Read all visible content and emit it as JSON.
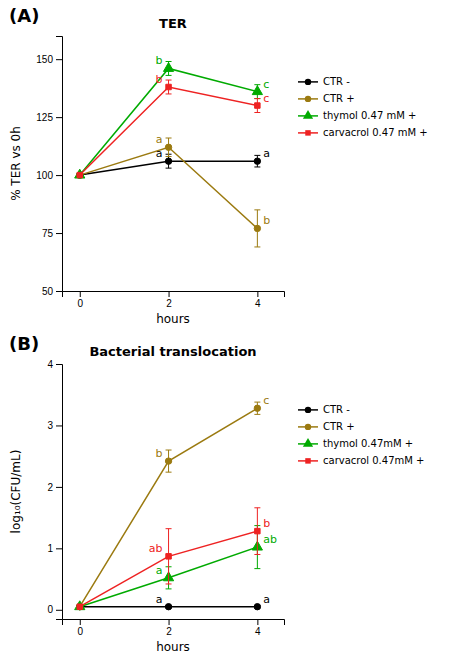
{
  "chart_data": [
    {
      "type": "line",
      "panel_label": "(A)",
      "title": "TER",
      "x_label": "hours",
      "y_label": "% TER vs 0h",
      "x": [
        0,
        2,
        4
      ],
      "xlim": [
        -0.4,
        4.6
      ],
      "xticks": [
        0,
        2,
        4
      ],
      "ylim": [
        50,
        160
      ],
      "yticks": [
        50,
        75,
        100,
        125,
        150
      ],
      "series": [
        {
          "name": "CTR -",
          "color": "#000000",
          "marker": "circle",
          "values": [
            100,
            106,
            106
          ],
          "errors": [
            0,
            3,
            2.5
          ]
        },
        {
          "name": "CTR +",
          "color": "#9b7a10",
          "marker": "circle",
          "values": [
            100,
            112,
            77
          ],
          "errors": [
            0,
            4,
            8
          ]
        },
        {
          "name": "thymol 0.47 mM +",
          "color": "#00aa00",
          "marker": "triangle",
          "values": [
            100,
            146,
            136
          ],
          "errors": [
            0,
            3,
            3
          ]
        },
        {
          "name": "carvacrol 0.47 mM +",
          "color": "#ee2222",
          "marker": "square",
          "values": [
            100,
            138,
            130
          ],
          "errors": [
            0,
            3,
            3
          ]
        }
      ],
      "annotations": [
        {
          "text": "b",
          "color": "#00aa00",
          "x": 2,
          "y": 146
        },
        {
          "text": "b",
          "color": "#ee2222",
          "x": 2,
          "y": 138
        },
        {
          "text": "a",
          "color": "#9b7a10",
          "x": 2,
          "y": 112
        },
        {
          "text": "a",
          "color": "#000000",
          "x": 2,
          "y": 106
        },
        {
          "text": "c",
          "color": "#00aa00",
          "x": 4,
          "y": 136
        },
        {
          "text": "c",
          "color": "#ee2222",
          "x": 4,
          "y": 130
        },
        {
          "text": "a",
          "color": "#000000",
          "x": 4,
          "y": 106
        },
        {
          "text": "b",
          "color": "#9b7a10",
          "x": 4,
          "y": 77
        }
      ]
    },
    {
      "type": "line",
      "panel_label": "(B)",
      "title": "Bacterial translocation",
      "x_label": "hours",
      "y_label": "log₁₀(CFU/mL)",
      "x": [
        0,
        2,
        4
      ],
      "xlim": [
        -0.4,
        4.6
      ],
      "xticks": [
        0,
        2,
        4
      ],
      "ylim": [
        -0.15,
        4.0
      ],
      "yticks": [
        0,
        1,
        2,
        3,
        4
      ],
      "series": [
        {
          "name": "CTR -",
          "color": "#000000",
          "marker": "circle",
          "values": [
            0.05,
            0.05,
            0.05
          ],
          "errors": [
            0,
            0.02,
            0.02
          ]
        },
        {
          "name": "CTR +",
          "color": "#9b7a10",
          "marker": "circle",
          "values": [
            0.05,
            2.42,
            3.28
          ],
          "errors": [
            0,
            0.18,
            0.1
          ]
        },
        {
          "name": "thymol 0.47mM +",
          "color": "#00aa00",
          "marker": "triangle",
          "values": [
            0.05,
            0.52,
            1.02
          ],
          "errors": [
            0,
            0.18,
            0.35
          ]
        },
        {
          "name": "carvacrol 0.47mM +",
          "color": "#ee2222",
          "marker": "square",
          "values": [
            0.05,
            0.87,
            1.28
          ],
          "errors": [
            0,
            0.45,
            0.38
          ]
        }
      ],
      "annotations": [
        {
          "text": "b",
          "color": "#9b7a10",
          "x": 2,
          "y": 2.42
        },
        {
          "text": "ab",
          "color": "#ee2222",
          "x": 2,
          "y": 0.87
        },
        {
          "text": "a",
          "color": "#00aa00",
          "x": 2,
          "y": 0.52
        },
        {
          "text": "a",
          "color": "#000000",
          "x": 2,
          "y": 0.05
        },
        {
          "text": "c",
          "color": "#9b7a10",
          "x": 4,
          "y": 3.28
        },
        {
          "text": "b",
          "color": "#ee2222",
          "x": 4,
          "y": 1.28
        },
        {
          "text": "ab",
          "color": "#00aa00",
          "x": 4,
          "y": 1.02
        },
        {
          "text": "a",
          "color": "#000000",
          "x": 4,
          "y": 0.05
        }
      ]
    }
  ]
}
